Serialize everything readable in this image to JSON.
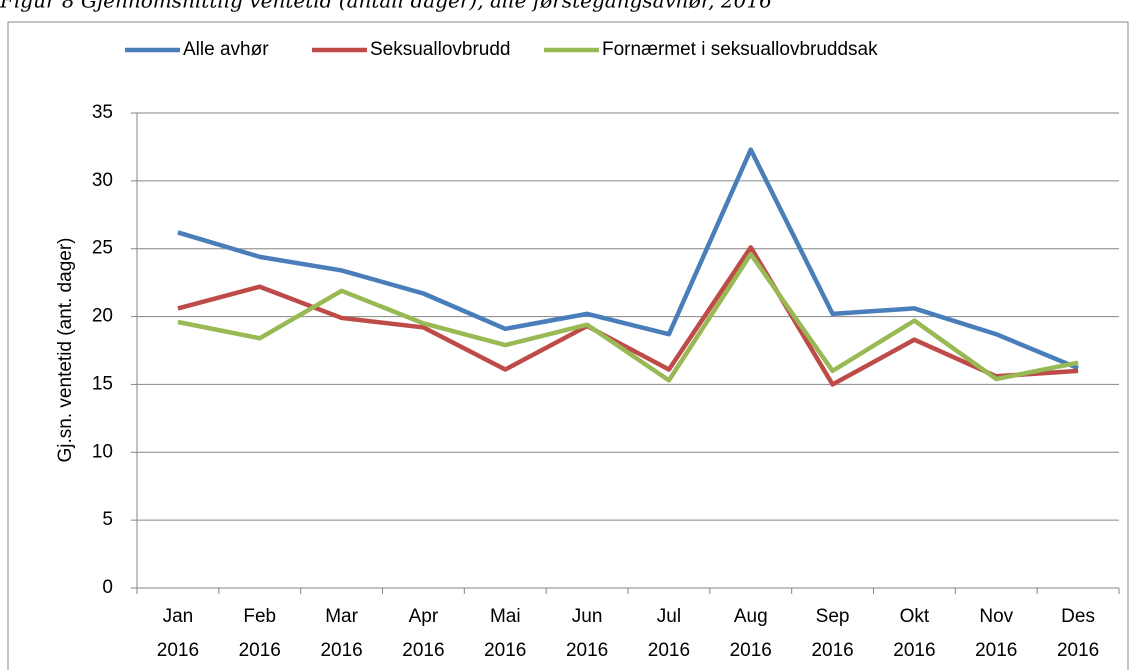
{
  "chart_data": {
    "type": "line",
    "title": "Figur 8 Gjennomsnittlig ventetid (antall dager), alle førstegangsavhør, 2016",
    "y_label": "Gj.sn. ventetid (ant. dager)",
    "categories": [
      "Jan 2016",
      "Feb 2016",
      "Mar 2016",
      "Apr 2016",
      "Mai 2016",
      "Jun 2016",
      "Jul 2016",
      "Aug 2016",
      "Sep 2016",
      "Okt 2016",
      "Nov 2016",
      "Des 2016"
    ],
    "series": [
      {
        "name": "Alle avhør",
        "color": "#4a7ebb",
        "values": [
          26.2,
          24.4,
          23.4,
          21.7,
          19.1,
          20.2,
          18.7,
          32.3,
          20.2,
          20.6,
          18.7,
          16.2
        ]
      },
      {
        "name": "Seksuallovbrudd",
        "color": "#be4b48",
        "values": [
          20.6,
          22.2,
          19.9,
          19.2,
          16.1,
          19.3,
          16.1,
          25.1,
          15.0,
          18.3,
          15.6,
          16.0
        ]
      },
      {
        "name": "Fornærmet i seksuallovbruddsak",
        "color": "#98b954",
        "values": [
          19.6,
          18.4,
          21.9,
          19.5,
          17.9,
          19.4,
          15.3,
          24.6,
          16.0,
          19.7,
          15.4,
          16.6
        ]
      }
    ],
    "ylim": [
      0,
      35
    ],
    "yticks": [
      0,
      5,
      10,
      15,
      20,
      25,
      30,
      35
    ],
    "grid": true,
    "legend": "top"
  }
}
